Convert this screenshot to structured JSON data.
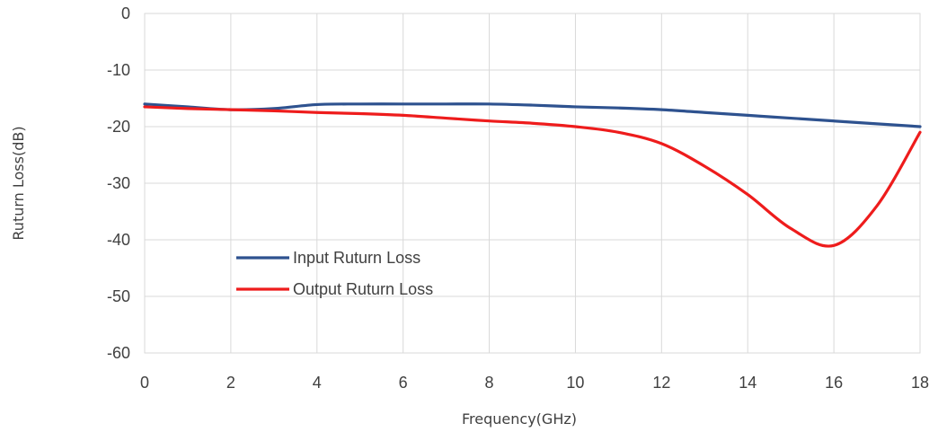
{
  "chart_data": {
    "type": "line",
    "xlabel": "Frequency(GHz)",
    "ylabel": "Ruturn Loss(dB)",
    "xlim": [
      0,
      18
    ],
    "ylim": [
      -60,
      0
    ],
    "x_ticks": [
      "0",
      "2",
      "4",
      "6",
      "8",
      "10",
      "12",
      "14",
      "16",
      "18"
    ],
    "y_ticks": [
      "0",
      "-10",
      "-20",
      "-30",
      "-40",
      "-50",
      "-60"
    ],
    "grid": true,
    "legend_position": "lower-left inside plot",
    "series": [
      {
        "name": "Input Ruturn Loss",
        "color": "#2e528f",
        "x": [
          0,
          1,
          2,
          3,
          4,
          5,
          6,
          7,
          8,
          9,
          10,
          11,
          12,
          13,
          14,
          15,
          16,
          17,
          18
        ],
        "y": [
          -16,
          -16.5,
          -17,
          -16.8,
          -16.1,
          -16,
          -16,
          -16,
          -16,
          -16.2,
          -16.5,
          -16.7,
          -17,
          -17.5,
          -18,
          -18.5,
          -19,
          -19.5,
          -20
        ]
      },
      {
        "name": "Output Ruturn Loss",
        "color": "#ee1c1c",
        "x": [
          0,
          1,
          2,
          3,
          4,
          5,
          6,
          7,
          8,
          9,
          10,
          11,
          12,
          13,
          14,
          15,
          16,
          17,
          18
        ],
        "y": [
          -16.5,
          -16.8,
          -17,
          -17.2,
          -17.5,
          -17.7,
          -18,
          -18.5,
          -19,
          -19.4,
          -20,
          -21,
          -23,
          -27,
          -32,
          -38,
          -41,
          -34,
          -21
        ]
      }
    ]
  }
}
